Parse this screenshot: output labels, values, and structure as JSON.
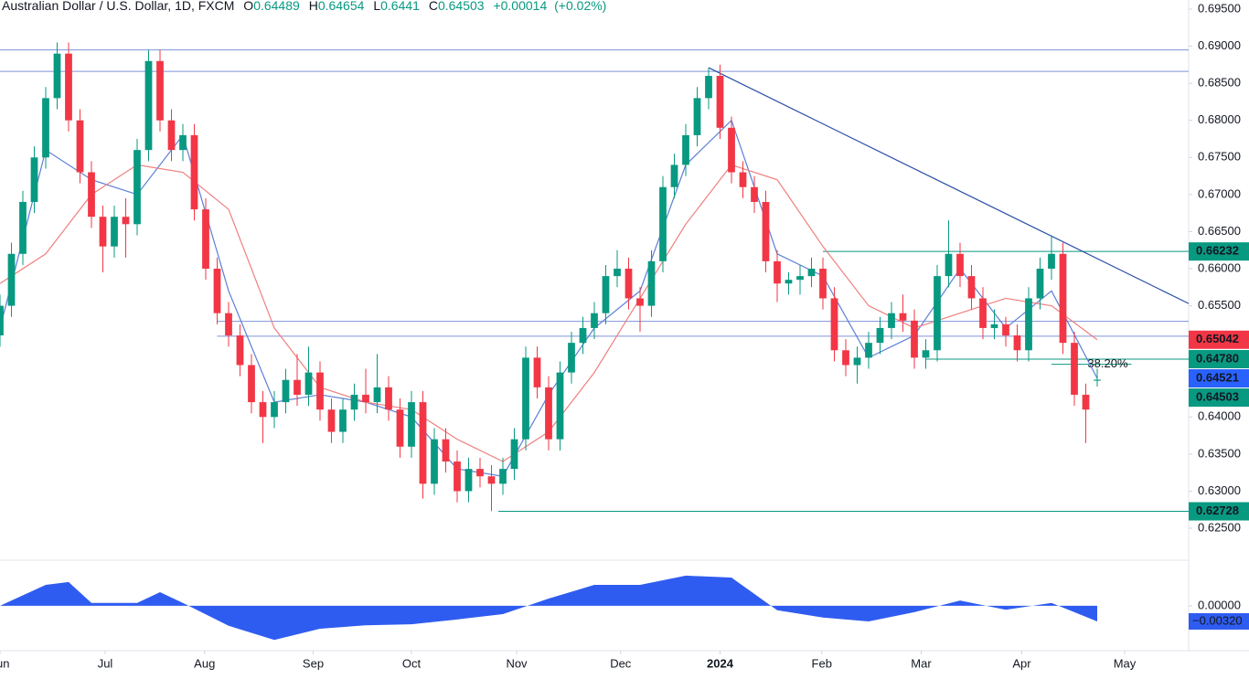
{
  "chart_data": {
    "type": "candlestick",
    "title": "Australian Dollar / U.S. Dollar, 1D, FXCM",
    "ohlc_letters": [
      "O",
      "H",
      "L",
      "C"
    ],
    "change": {
      "value": 0.00014,
      "label": "+0.00014"
    },
    "change_pct": {
      "value": 0.02,
      "label": "(+0.02%)"
    },
    "up_color": "#089981",
    "down_color": "#f23645",
    "xlim": [
      0,
      104
    ],
    "ylim": [
      0.62106,
      0.69623
    ],
    "yticks": [
      {
        "value": 0.625,
        "label": "0.62500"
      },
      {
        "value": 0.63,
        "label": "0.63000"
      },
      {
        "value": 0.635,
        "label": "0.63500"
      },
      {
        "value": 0.64,
        "label": "0.64000"
      },
      {
        "value": 0.645,
        "label": "0.64500"
      },
      {
        "value": 0.65,
        "label": "0.65000"
      },
      {
        "value": 0.655,
        "label": "0.65500"
      },
      {
        "value": 0.66,
        "label": "0.66000"
      },
      {
        "value": 0.665,
        "label": "0.66500"
      },
      {
        "value": 0.67,
        "label": "0.67000"
      },
      {
        "value": 0.675,
        "label": "0.67500"
      },
      {
        "value": 0.68,
        "label": "0.68000"
      },
      {
        "value": 0.685,
        "label": "0.68500"
      },
      {
        "value": 0.69,
        "label": "0.69000"
      },
      {
        "value": 0.695,
        "label": "0.69500"
      }
    ],
    "xticks": [
      {
        "value": 0,
        "label": "Jun"
      },
      {
        "value": 9.2,
        "label": "Jul"
      },
      {
        "value": 17.9,
        "label": "Aug"
      },
      {
        "value": 27.4,
        "label": "Sep"
      },
      {
        "value": 36,
        "label": "Oct"
      },
      {
        "value": 45.2,
        "label": "Nov"
      },
      {
        "value": 54.3,
        "label": "Dec"
      },
      {
        "value": 63,
        "label": "2024"
      },
      {
        "value": 71.9,
        "label": "Feb"
      },
      {
        "value": 80.6,
        "label": "Mar"
      },
      {
        "value": 89.4,
        "label": "Apr"
      },
      {
        "value": 98.4,
        "label": "May"
      }
    ],
    "candles": [
      [
        0.651,
        0.6565,
        0.6495,
        0.655
      ],
      [
        0.655,
        0.6635,
        0.6535,
        0.662
      ],
      [
        0.662,
        0.6705,
        0.6605,
        0.669
      ],
      [
        0.669,
        0.6765,
        0.6675,
        0.675
      ],
      [
        0.675,
        0.6845,
        0.6735,
        0.683
      ],
      [
        0.683,
        0.6905,
        0.6815,
        0.689
      ],
      [
        0.689,
        0.6905,
        0.6785,
        0.68
      ],
      [
        0.68,
        0.6815,
        0.6715,
        0.673
      ],
      [
        0.673,
        0.6745,
        0.6655,
        0.667
      ],
      [
        0.667,
        0.6685,
        0.6595,
        0.663
      ],
      [
        0.663,
        0.6685,
        0.6615,
        0.667
      ],
      [
        0.667,
        0.6695,
        0.6615,
        0.666
      ],
      [
        0.666,
        0.6775,
        0.6645,
        0.676
      ],
      [
        0.676,
        0.6895,
        0.6745,
        0.688
      ],
      [
        0.688,
        0.6895,
        0.6785,
        0.68
      ],
      [
        0.68,
        0.6815,
        0.6745,
        0.676
      ],
      [
        0.676,
        0.6795,
        0.6745,
        0.678
      ],
      [
        0.678,
        0.6795,
        0.6665,
        0.668
      ],
      [
        0.668,
        0.6695,
        0.6585,
        0.66
      ],
      [
        0.66,
        0.6615,
        0.6525,
        0.654
      ],
      [
        0.654,
        0.6555,
        0.6495,
        0.651
      ],
      [
        0.651,
        0.6525,
        0.6455,
        0.647
      ],
      [
        0.647,
        0.6485,
        0.6405,
        0.642
      ],
      [
        0.642,
        0.6435,
        0.6365,
        0.64
      ],
      [
        0.64,
        0.6435,
        0.6385,
        0.642
      ],
      [
        0.642,
        0.6465,
        0.6405,
        0.645
      ],
      [
        0.645,
        0.6485,
        0.6415,
        0.643
      ],
      [
        0.643,
        0.6495,
        0.6415,
        0.646
      ],
      [
        0.646,
        0.6475,
        0.6395,
        0.641
      ],
      [
        0.641,
        0.6425,
        0.6365,
        0.638
      ],
      [
        0.638,
        0.6425,
        0.6365,
        0.641
      ],
      [
        0.641,
        0.6445,
        0.6395,
        0.643
      ],
      [
        0.643,
        0.6465,
        0.6405,
        0.642
      ],
      [
        0.642,
        0.6485,
        0.6405,
        0.644
      ],
      [
        0.644,
        0.6455,
        0.6395,
        0.641
      ],
      [
        0.641,
        0.6425,
        0.6345,
        0.636
      ],
      [
        0.636,
        0.6435,
        0.6345,
        0.642
      ],
      [
        0.642,
        0.6435,
        0.629,
        0.631
      ],
      [
        0.631,
        0.6385,
        0.6295,
        0.637
      ],
      [
        0.637,
        0.6385,
        0.6325,
        0.634
      ],
      [
        0.634,
        0.6355,
        0.6285,
        0.63
      ],
      [
        0.63,
        0.6345,
        0.6285,
        0.633
      ],
      [
        0.633,
        0.6345,
        0.6305,
        0.632
      ],
      [
        0.632,
        0.6335,
        0.6273,
        0.631
      ],
      [
        0.631,
        0.6345,
        0.6295,
        0.633
      ],
      [
        0.633,
        0.6385,
        0.6315,
        0.637
      ],
      [
        0.637,
        0.6495,
        0.6355,
        0.648
      ],
      [
        0.648,
        0.6495,
        0.6425,
        0.644
      ],
      [
        0.644,
        0.6455,
        0.6355,
        0.637
      ],
      [
        0.637,
        0.6475,
        0.6355,
        0.646
      ],
      [
        0.646,
        0.6515,
        0.6445,
        0.65
      ],
      [
        0.65,
        0.6535,
        0.6485,
        0.652
      ],
      [
        0.652,
        0.6555,
        0.6505,
        0.654
      ],
      [
        0.654,
        0.6605,
        0.6525,
        0.659
      ],
      [
        0.659,
        0.6625,
        0.6575,
        0.66
      ],
      [
        0.66,
        0.6615,
        0.6545,
        0.656
      ],
      [
        0.656,
        0.6575,
        0.6515,
        0.655
      ],
      [
        0.655,
        0.6625,
        0.6535,
        0.661
      ],
      [
        0.661,
        0.6725,
        0.6595,
        0.671
      ],
      [
        0.671,
        0.6755,
        0.6695,
        0.674
      ],
      [
        0.674,
        0.6795,
        0.6725,
        0.678
      ],
      [
        0.678,
        0.6845,
        0.6765,
        0.683
      ],
      [
        0.683,
        0.6871,
        0.6815,
        0.686
      ],
      [
        0.686,
        0.6875,
        0.6775,
        0.679
      ],
      [
        0.679,
        0.6805,
        0.6715,
        0.673
      ],
      [
        0.673,
        0.6745,
        0.6695,
        0.671
      ],
      [
        0.671,
        0.6725,
        0.6675,
        0.669
      ],
      [
        0.669,
        0.6705,
        0.6595,
        0.661
      ],
      [
        0.661,
        0.6625,
        0.6555,
        0.658
      ],
      [
        0.658,
        0.6595,
        0.6565,
        0.6585
      ],
      [
        0.6585,
        0.6605,
        0.6565,
        0.659
      ],
      [
        0.659,
        0.6615,
        0.6575,
        0.66
      ],
      [
        0.66,
        0.6615,
        0.6545,
        0.656
      ],
      [
        0.656,
        0.6575,
        0.6475,
        0.649
      ],
      [
        0.649,
        0.6505,
        0.6455,
        0.647
      ],
      [
        0.647,
        0.6495,
        0.6445,
        0.648
      ],
      [
        0.648,
        0.6515,
        0.6465,
        0.65
      ],
      [
        0.65,
        0.6535,
        0.6485,
        0.652
      ],
      [
        0.652,
        0.6555,
        0.6505,
        0.654
      ],
      [
        0.654,
        0.6565,
        0.6515,
        0.653
      ],
      [
        0.653,
        0.6545,
        0.6465,
        0.648
      ],
      [
        0.648,
        0.6505,
        0.6465,
        0.649
      ],
      [
        0.649,
        0.6605,
        0.6475,
        0.659
      ],
      [
        0.659,
        0.6665,
        0.6575,
        0.662
      ],
      [
        0.662,
        0.6635,
        0.6575,
        0.659
      ],
      [
        0.659,
        0.6605,
        0.6545,
        0.656
      ],
      [
        0.656,
        0.6575,
        0.6505,
        0.652
      ],
      [
        0.652,
        0.6545,
        0.6505,
        0.6525
      ],
      [
        0.6525,
        0.6535,
        0.6495,
        0.651
      ],
      [
        0.651,
        0.6525,
        0.6475,
        0.649
      ],
      [
        0.649,
        0.6575,
        0.6475,
        0.656
      ],
      [
        0.656,
        0.6615,
        0.6545,
        0.66
      ],
      [
        0.66,
        0.6645,
        0.6585,
        0.662
      ],
      [
        0.662,
        0.6635,
        0.6485,
        0.65
      ],
      [
        0.65,
        0.6515,
        0.6415,
        0.643
      ],
      [
        0.643,
        0.6445,
        0.6365,
        0.641
      ],
      [
        0.64489,
        0.64654,
        0.6441,
        0.64503
      ]
    ],
    "series": [
      {
        "color": "#5b7fd6",
        "tag": true,
        "x": [
          0,
          4,
          8,
          12,
          16,
          20,
          24,
          28,
          32,
          36,
          40,
          44,
          48,
          52,
          56,
          60,
          64,
          68,
          72,
          76,
          80,
          84,
          88,
          92,
          96
        ],
        "values": [
          0.652,
          0.676,
          0.672,
          0.67,
          0.678,
          0.657,
          0.642,
          0.643,
          0.642,
          0.64,
          0.633,
          0.632,
          0.643,
          0.652,
          0.657,
          0.674,
          0.68,
          0.662,
          0.659,
          0.648,
          0.651,
          0.66,
          0.652,
          0.657,
          0.64521
        ]
      },
      {
        "color": "#ef7f7f",
        "tag": true,
        "x": [
          0,
          4,
          8,
          12,
          16,
          20,
          24,
          28,
          32,
          36,
          40,
          44,
          48,
          52,
          56,
          60,
          64,
          68,
          72,
          76,
          80,
          84,
          88,
          92,
          96
        ],
        "values": [
          0.658,
          0.662,
          0.67,
          0.674,
          0.673,
          0.668,
          0.652,
          0.644,
          0.642,
          0.641,
          0.637,
          0.634,
          0.638,
          0.646,
          0.656,
          0.666,
          0.674,
          0.672,
          0.663,
          0.655,
          0.652,
          0.654,
          0.656,
          0.655,
          0.65042
        ]
      }
    ],
    "levels": [
      {
        "value": 0.6895,
        "color": "#7d93d9",
        "from": 0
      },
      {
        "value": 0.6866,
        "color": "#7d93d9",
        "from": 0
      },
      {
        "value": 0.6529,
        "color": "#7d93d9",
        "from": 19
      },
      {
        "value": 0.6509,
        "color": "#7d93d9",
        "from": 19
      },
      {
        "value": 0.66232,
        "color": "#089981",
        "from": 72,
        "tag": true
      },
      {
        "value": 0.6478,
        "label": "0.64780",
        "color": "#089981",
        "from": 81,
        "tag": true
      },
      {
        "value": 0.62728,
        "color": "#089981",
        "from": 43.6,
        "tag": true
      }
    ],
    "fib": {
      "value": 0.6471,
      "from": 92,
      "to": 99,
      "label": "38.20%",
      "color": "#089981"
    },
    "trendline": {
      "x": [
        62,
        104
      ],
      "values": [
        0.6871,
        0.6553
      ],
      "color": "#2a4fa6"
    },
    "oscillator": {
      "color": "#2f5cf0",
      "y2lim": [
        -0.0079,
        0.009
      ],
      "y2ticks": [
        {
          "value": 0,
          "label": "0.00000"
        }
      ],
      "x": [
        0,
        4,
        6,
        8,
        12,
        14,
        16,
        20,
        24,
        28,
        32,
        36,
        40,
        44,
        48,
        52,
        56,
        60,
        64,
        68,
        72,
        76,
        80,
        84,
        88,
        92,
        96
      ],
      "values": [
        0,
        0.0043,
        0.0049,
        0.0006,
        0.0006,
        0.0028,
        0.0006,
        -0.0041,
        -0.007,
        -0.0047,
        -0.004,
        -0.0038,
        -0.0028,
        -0.0017,
        0.0015,
        0.0043,
        0.0043,
        0.0062,
        0.0058,
        -0.0009,
        -0.0024,
        -0.0032,
        -0.0013,
        0.0011,
        -0.0008,
        0.0006,
        -0.0032
      ],
      "value_labels": [
        null,
        null,
        null,
        null,
        null,
        null,
        null,
        null,
        null,
        null,
        null,
        null,
        null,
        null,
        null,
        null,
        null,
        null,
        null,
        null,
        null,
        null,
        null,
        null,
        null,
        null,
        "−0.00320"
      ]
    }
  }
}
